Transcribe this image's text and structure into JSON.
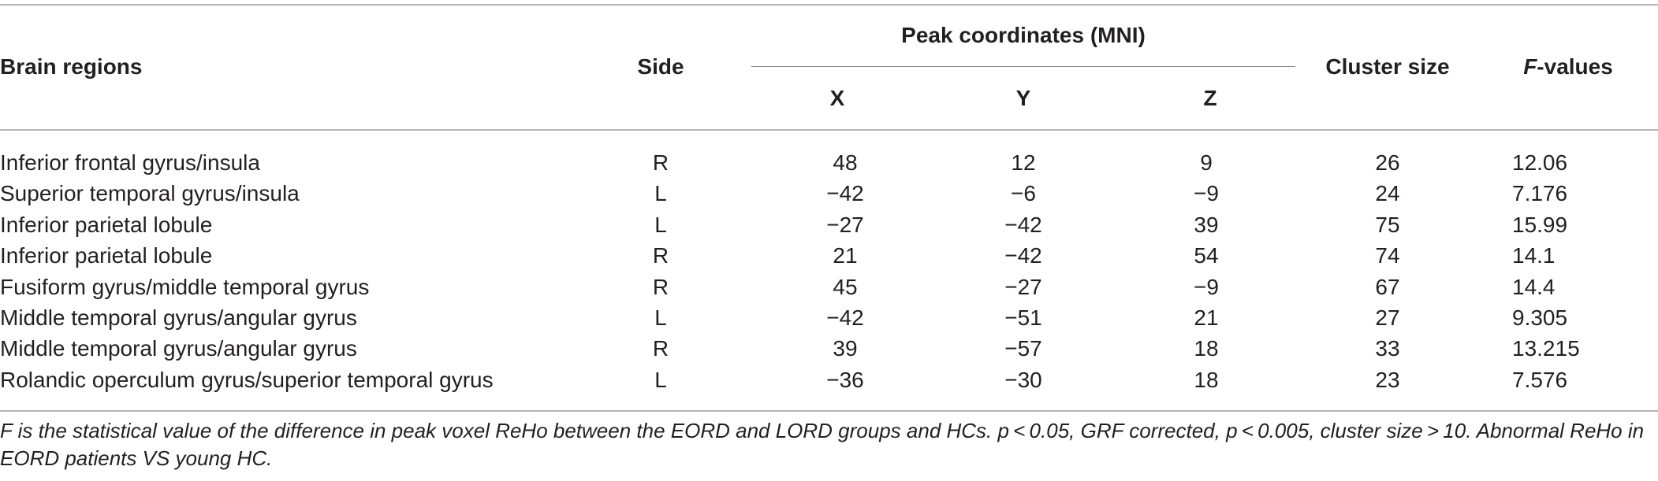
{
  "table": {
    "headers": {
      "brain_regions": "Brain regions",
      "side": "Side",
      "peak_coordinates": "Peak coordinates (MNI)",
      "x": "X",
      "y": "Y",
      "z": "Z",
      "cluster_size": "Cluster size",
      "f_values_prefix": "F",
      "f_values_suffix": "-values"
    },
    "rows": [
      {
        "region": "Inferior frontal gyrus/insula",
        "side": "R",
        "x": "48",
        "y": "12",
        "z": "9",
        "cluster": "26",
        "f": "12.06"
      },
      {
        "region": "Superior temporal gyrus/insula",
        "side": "L",
        "x": "−42",
        "y": "−6",
        "z": "−9",
        "cluster": "24",
        "f": "7.176"
      },
      {
        "region": "Inferior parietal lobule",
        "side": "L",
        "x": "−27",
        "y": "−42",
        "z": "39",
        "cluster": "75",
        "f": "15.99"
      },
      {
        "region": "Inferior parietal lobule",
        "side": "R",
        "x": "21",
        "y": "−42",
        "z": "54",
        "cluster": "74",
        "f": "14.1"
      },
      {
        "region": "Fusiform gyrus/middle temporal gyrus",
        "side": "R",
        "x": "45",
        "y": "−27",
        "z": "−9",
        "cluster": "67",
        "f": "14.4"
      },
      {
        "region": "Middle temporal gyrus/angular gyrus",
        "side": "L",
        "x": "−42",
        "y": "−51",
        "z": "21",
        "cluster": "27",
        "f": "9.305"
      },
      {
        "region": "Middle temporal gyrus/angular gyrus",
        "side": "R",
        "x": "39",
        "y": "−57",
        "z": "18",
        "cluster": "33",
        "f": "13.215"
      },
      {
        "region": "Rolandic operculum gyrus/superior temporal gyrus",
        "side": "L",
        "x": "−36",
        "y": "−30",
        "z": "18",
        "cluster": "23",
        "f": "7.576"
      }
    ]
  },
  "footnote": "F is the statistical value of the difference in peak voxel ReHo between the EORD and LORD groups and HCs. p < 0.05, GRF corrected, p < 0.005, cluster size > 10. Abnormal ReHo in EORD patients VS young HC."
}
